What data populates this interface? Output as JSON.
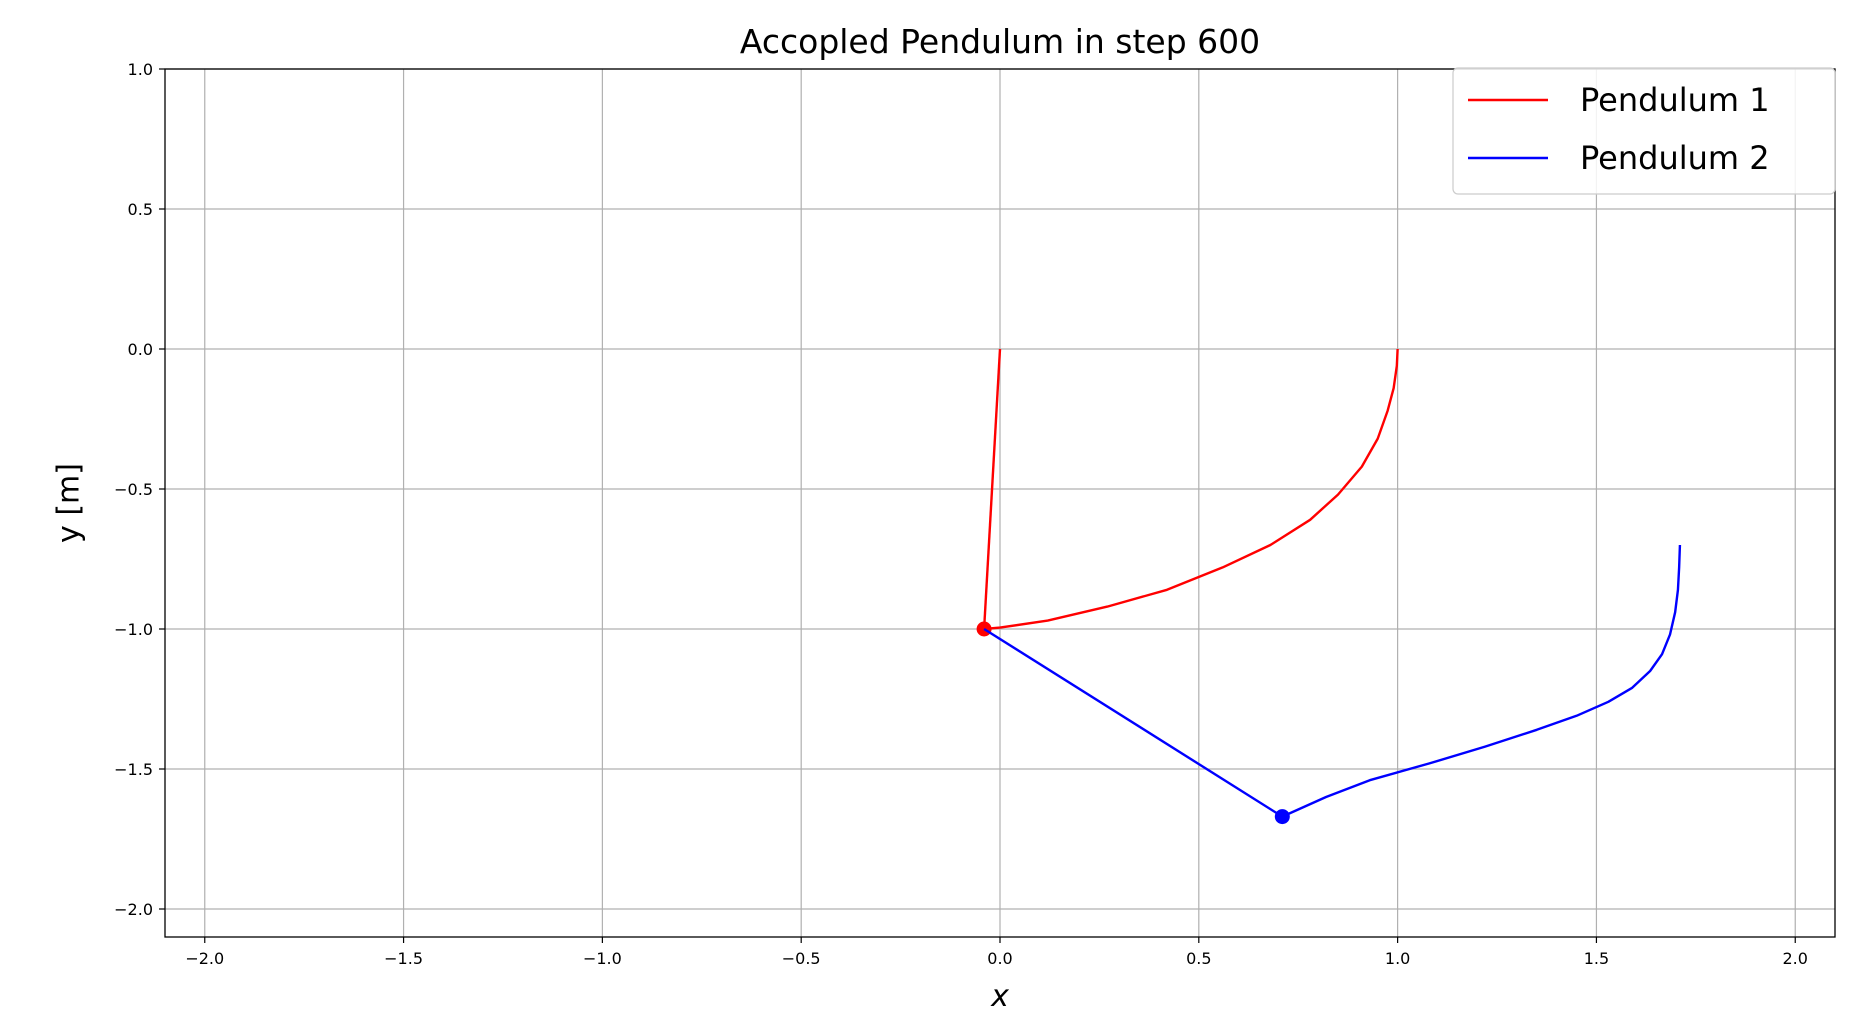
{
  "chart_data": {
    "type": "line",
    "title": "Accopled Pendulum in step 600",
    "xlabel": "x",
    "ylabel": "y [m]",
    "xlim": [
      -2.1,
      2.1
    ],
    "ylim": [
      -2.1,
      1.0
    ],
    "grid": true,
    "legend_position": "top-right",
    "x_ticks": [
      -2.0,
      -1.5,
      -1.0,
      -0.5,
      0.0,
      0.5,
      1.0,
      1.5,
      2.0
    ],
    "x_tick_labels": [
      "−2.0",
      "−1.5",
      "−1.0",
      "−0.5",
      "0.0",
      "0.5",
      "1.0",
      "1.5",
      "2.0"
    ],
    "y_ticks": [
      1.0,
      0.5,
      0.0,
      -0.5,
      -1.0,
      -1.5,
      -2.0
    ],
    "y_tick_labels": [
      "1.0",
      "0.5",
      "0.0",
      "−0.5",
      "−1.0",
      "−1.5",
      "−2.0"
    ],
    "series": [
      {
        "name": "Pendulum 1",
        "color": "#ff0000",
        "rod": [
          [
            0.0,
            0.0
          ],
          [
            -0.04,
            -1.0
          ]
        ],
        "bob": [
          -0.04,
          -1.0
        ],
        "trace": [
          [
            1.0,
            0.0
          ],
          [
            0.998,
            -0.06
          ],
          [
            0.99,
            -0.14
          ],
          [
            0.975,
            -0.22
          ],
          [
            0.95,
            -0.32
          ],
          [
            0.91,
            -0.42
          ],
          [
            0.85,
            -0.52
          ],
          [
            0.78,
            -0.61
          ],
          [
            0.68,
            -0.7
          ],
          [
            0.56,
            -0.78
          ],
          [
            0.42,
            -0.86
          ],
          [
            0.27,
            -0.92
          ],
          [
            0.12,
            -0.97
          ],
          [
            0.0,
            -0.995
          ],
          [
            -0.04,
            -1.0
          ]
        ]
      },
      {
        "name": "Pendulum 2",
        "color": "#0000ff",
        "rod": [
          [
            -0.04,
            -1.0
          ],
          [
            0.71,
            -1.67
          ]
        ],
        "bob": [
          0.71,
          -1.67
        ],
        "trace": [
          [
            1.71,
            -0.7
          ],
          [
            1.708,
            -0.78
          ],
          [
            1.705,
            -0.86
          ],
          [
            1.698,
            -0.94
          ],
          [
            1.685,
            -1.02
          ],
          [
            1.665,
            -1.09
          ],
          [
            1.635,
            -1.15
          ],
          [
            1.59,
            -1.21
          ],
          [
            1.53,
            -1.26
          ],
          [
            1.45,
            -1.31
          ],
          [
            1.35,
            -1.36
          ],
          [
            1.22,
            -1.42
          ],
          [
            1.08,
            -1.48
          ],
          [
            0.93,
            -1.54
          ],
          [
            0.82,
            -1.6
          ],
          [
            0.71,
            -1.67
          ]
        ]
      }
    ]
  }
}
